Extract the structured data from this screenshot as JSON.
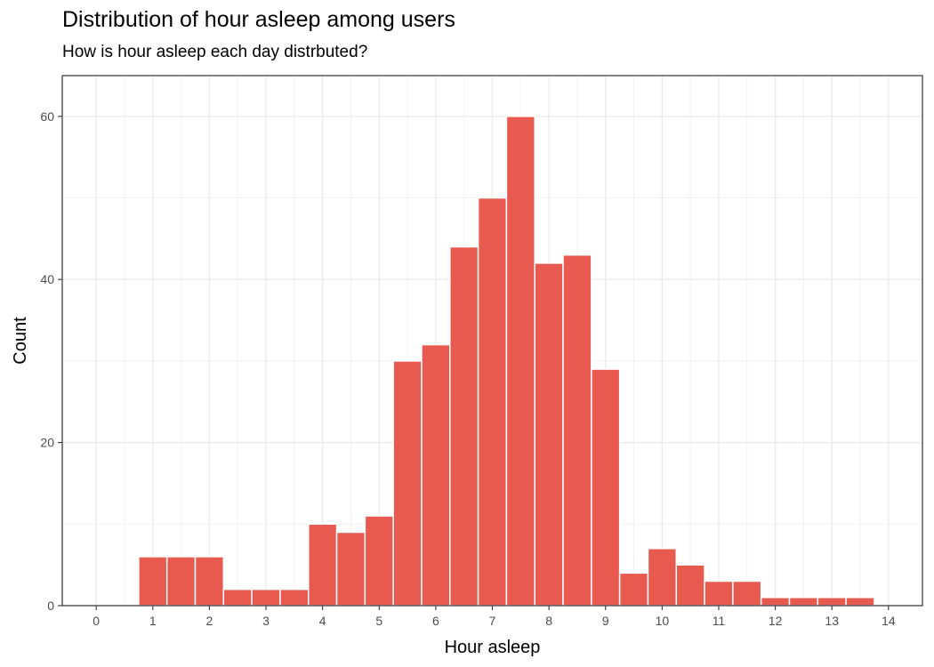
{
  "chart_data": {
    "type": "bar",
    "title": "Distribution of hour asleep among users",
    "subtitle": "How is hour asleep each day distrbuted?",
    "xlabel": "Hour asleep",
    "ylabel": "Count",
    "xlim": [
      -0.6,
      14.6
    ],
    "ylim": [
      0,
      65
    ],
    "bin_width": 0.5,
    "x_ticks": [
      0,
      1,
      2,
      3,
      4,
      5,
      6,
      7,
      8,
      9,
      10,
      11,
      12,
      13,
      14
    ],
    "y_ticks": [
      0,
      20,
      40,
      60
    ],
    "x": [
      1.0,
      1.5,
      2.0,
      2.5,
      3.0,
      3.5,
      4.0,
      4.5,
      5.0,
      5.5,
      6.0,
      6.5,
      7.0,
      7.5,
      8.0,
      8.5,
      9.0,
      9.5,
      10.0,
      10.5,
      11.0,
      11.5,
      12.0,
      12.5,
      13.0,
      13.5
    ],
    "values": [
      6,
      6,
      6,
      2,
      2,
      2,
      10,
      9,
      11,
      30,
      32,
      44,
      50,
      60,
      42,
      43,
      29,
      4,
      7,
      5,
      3,
      3,
      1,
      1,
      1,
      1
    ],
    "bar_color": "#e85a50",
    "grid": true,
    "legend": "none"
  }
}
